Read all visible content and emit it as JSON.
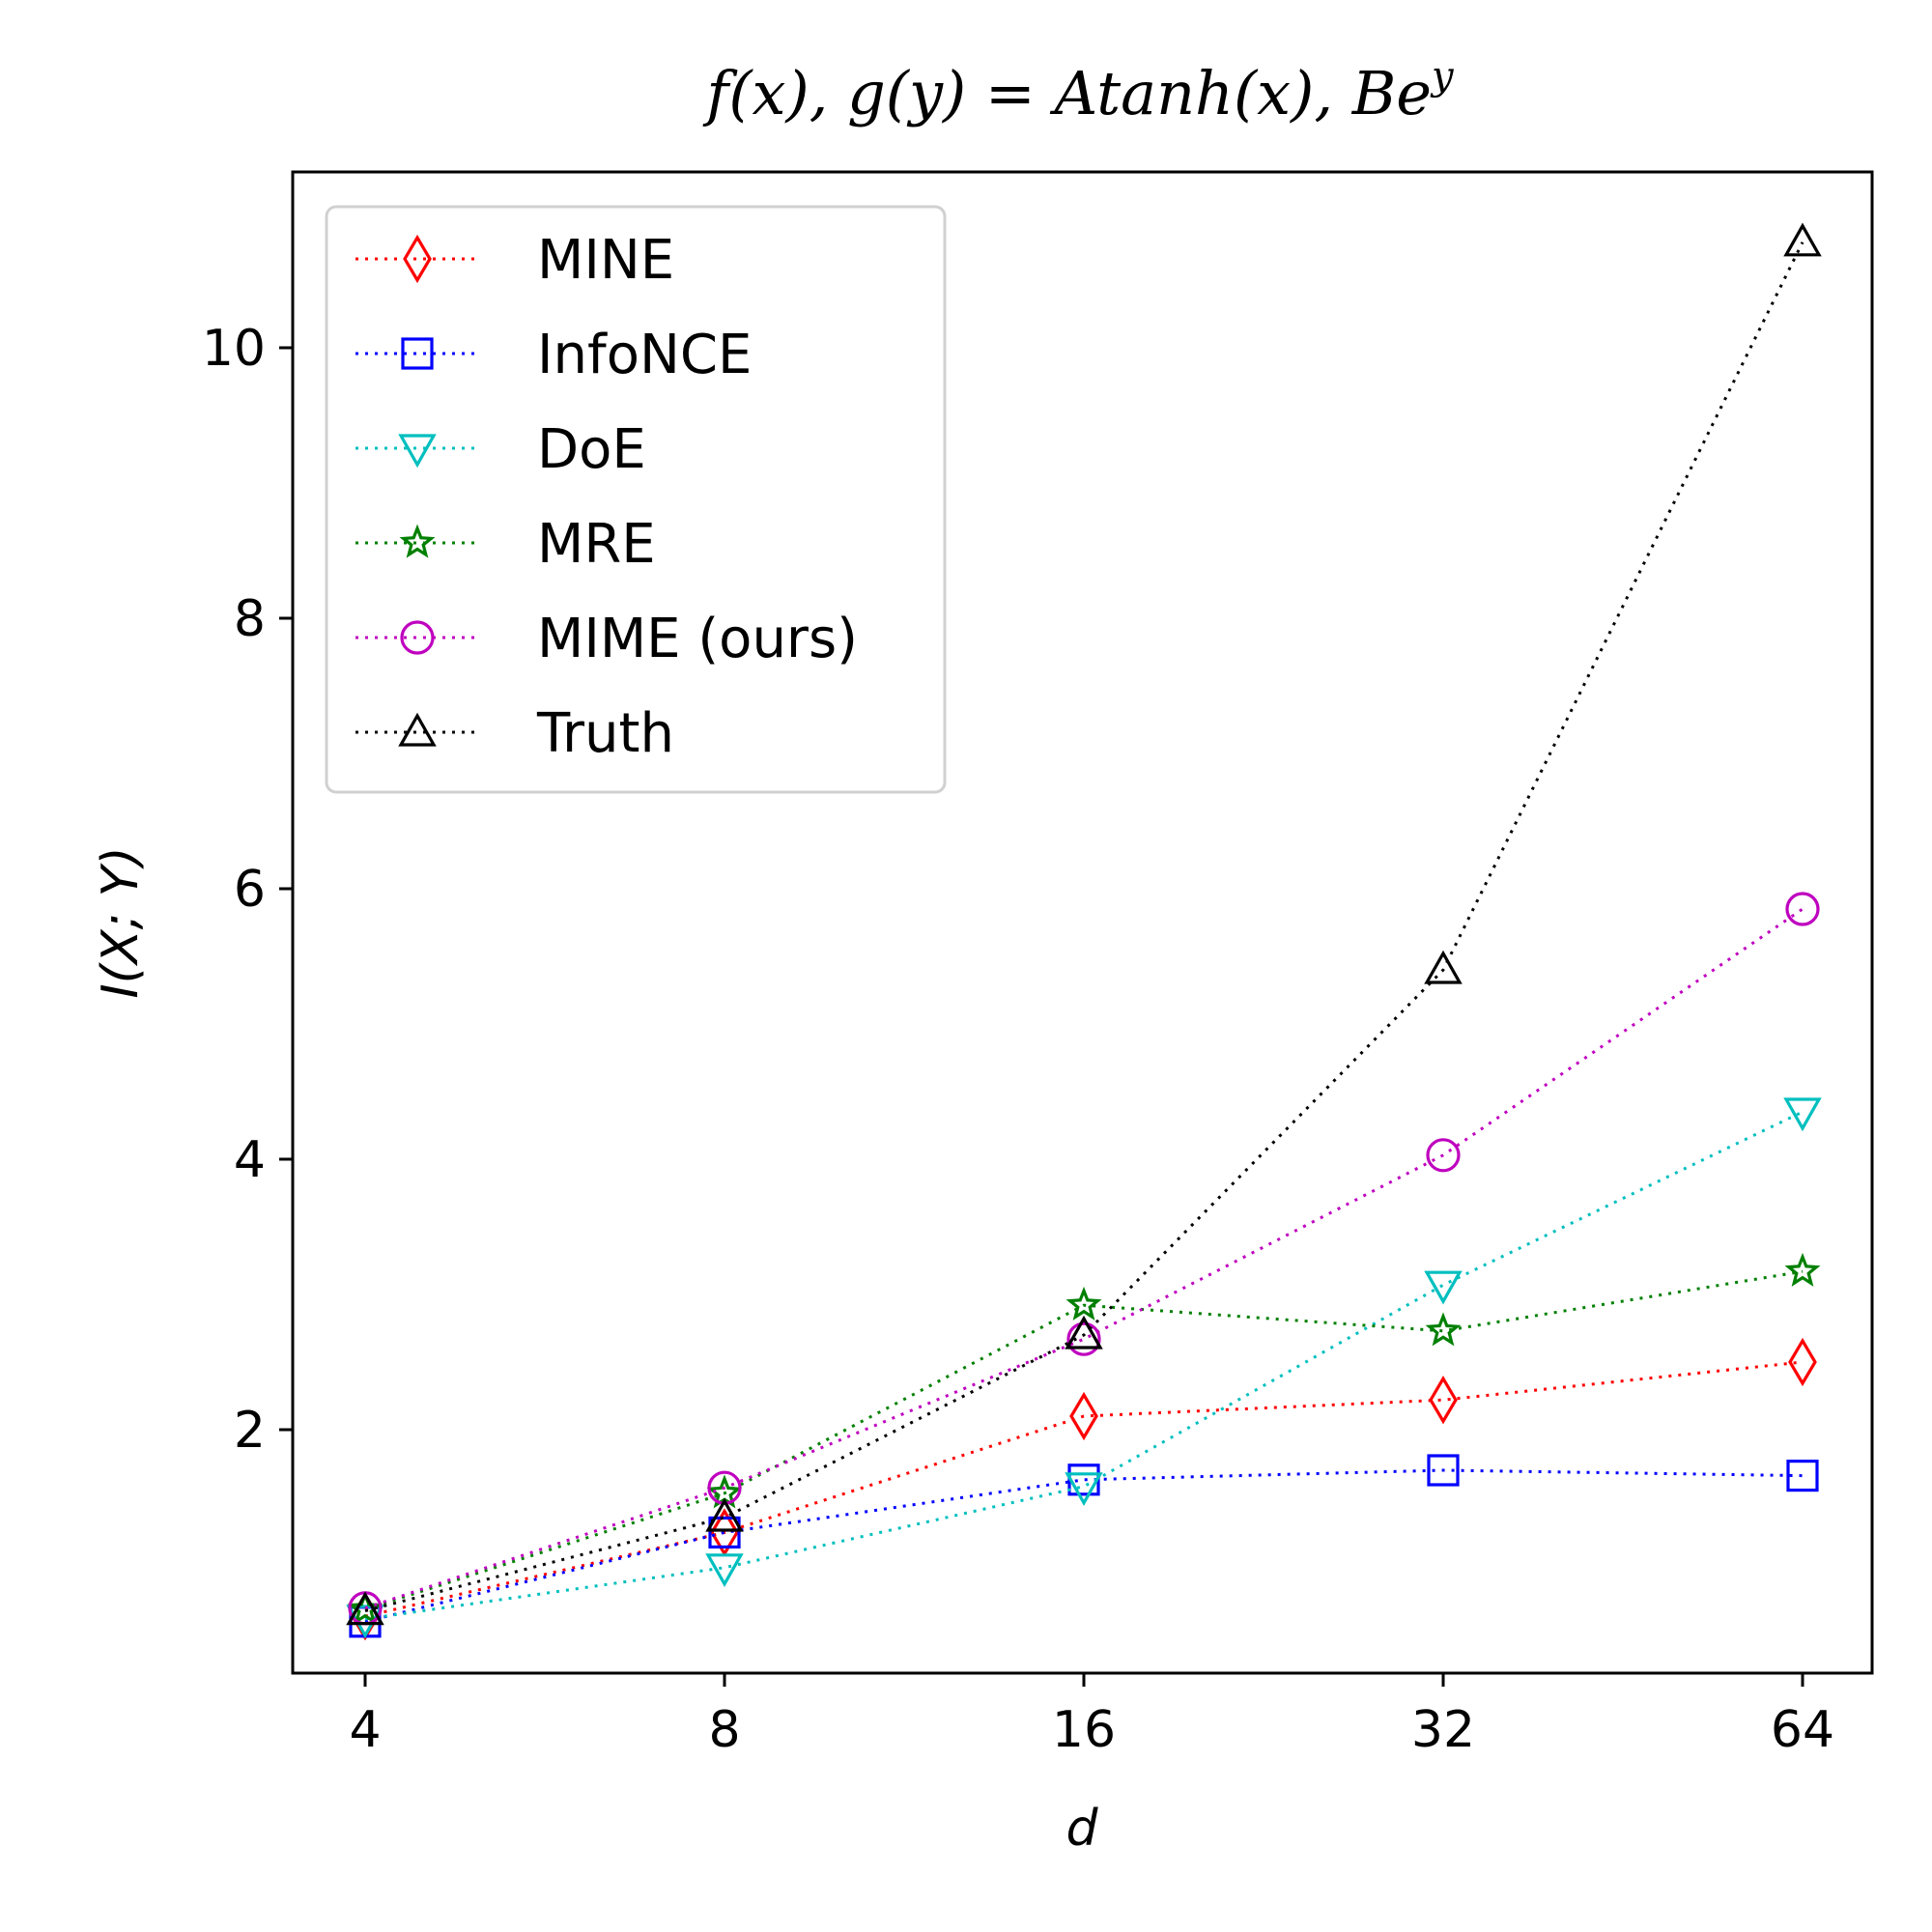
{
  "chart_data": {
    "type": "line",
    "title": "f(x), g(y) = Atanh(x), Be^y",
    "xlabel": "d",
    "ylabel": "I(X; Y)",
    "x_scale": "log2",
    "x": [
      4,
      8,
      16,
      32,
      64
    ],
    "x_tick_labels": [
      "4",
      "8",
      "16",
      "32",
      "64"
    ],
    "y_ticks": [
      2,
      4,
      6,
      8,
      10
    ],
    "ylim": [
      0.2,
      11.3
    ],
    "grid": false,
    "legend_position": "top-left",
    "series": [
      {
        "name": "MINE",
        "color": "#ff0000",
        "marker": "thin-diamond",
        "values": [
          0.62,
          1.24,
          2.1,
          2.22,
          2.5
        ]
      },
      {
        "name": "InfoNCE",
        "color": "#0000ff",
        "marker": "square",
        "values": [
          0.58,
          1.24,
          1.63,
          1.7,
          1.66
        ]
      },
      {
        "name": "DoE",
        "color": "#00bfbf",
        "marker": "triangle-down",
        "values": [
          0.6,
          0.98,
          1.58,
          3.07,
          4.35
        ]
      },
      {
        "name": "MRE",
        "color": "#008000",
        "marker": "star",
        "values": [
          0.67,
          1.53,
          2.92,
          2.73,
          3.17
        ]
      },
      {
        "name": "MIME (ours)",
        "color": "#bf00bf",
        "marker": "circle",
        "values": [
          0.68,
          1.57,
          2.67,
          4.03,
          5.85
        ]
      },
      {
        "name": "Truth",
        "color": "#000000",
        "marker": "triangle-up",
        "values": [
          0.66,
          1.35,
          2.7,
          5.4,
          10.78
        ]
      }
    ]
  }
}
